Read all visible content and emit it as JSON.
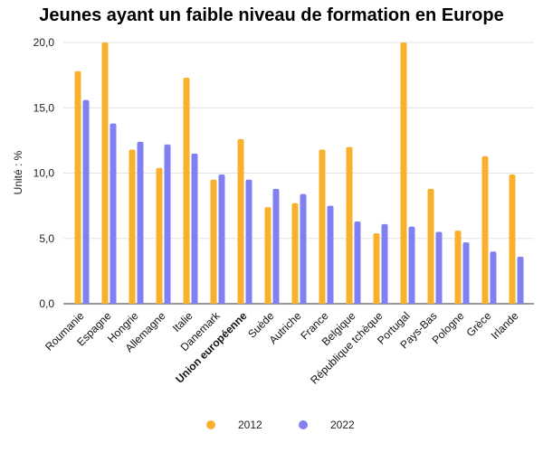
{
  "chart_data": {
    "type": "bar",
    "title": "Jeunes ayant un faible niveau de formation en Europe",
    "ylabel": "Unité : %",
    "xlabel": "",
    "ylim": [
      0,
      20
    ],
    "yticks": [
      "0,0",
      "5,0",
      "10,0",
      "15,0",
      "20,0"
    ],
    "ytick_values": [
      0,
      5,
      10,
      15,
      20
    ],
    "grid": true,
    "legend_position": "bottom",
    "highlighted_category": "Union européenne",
    "categories": [
      "Roumanie",
      "Espagne",
      "Hongrie",
      "Allemagne",
      "Italie",
      "Danemark",
      "Union européenne",
      "Suède",
      "Autriche",
      "France",
      "Belgique",
      "République tchèque",
      "Portugal",
      "Pays-Bas",
      "Pologne",
      "Grèce",
      "Irlande"
    ],
    "series": [
      {
        "name": "2012",
        "color": "#F9B02C",
        "values": [
          17.8,
          20.0,
          11.8,
          10.4,
          17.3,
          9.5,
          12.6,
          7.4,
          7.7,
          11.8,
          12.0,
          5.4,
          20.0,
          8.8,
          5.6,
          11.3,
          9.9
        ]
      },
      {
        "name": "2022",
        "color": "#8080F0",
        "values": [
          15.6,
          13.8,
          12.4,
          12.2,
          11.5,
          9.9,
          9.5,
          8.8,
          8.4,
          7.5,
          6.3,
          6.1,
          5.9,
          5.5,
          4.7,
          4.0,
          3.6
        ]
      }
    ]
  }
}
